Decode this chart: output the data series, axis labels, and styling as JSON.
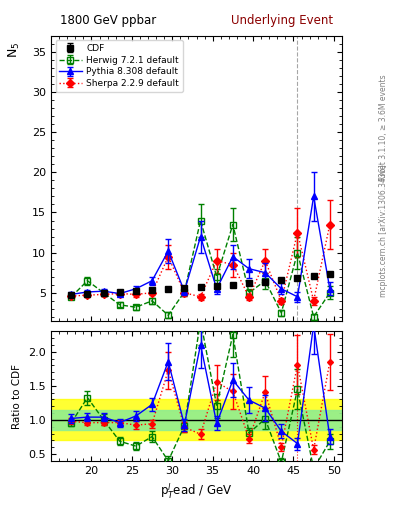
{
  "title_left": "1800 GeV ppbar",
  "title_right": "Underlying Event",
  "ylabel_main": "N$_5$",
  "ylabel_ratio": "Ratio to CDF",
  "xlabel": "p$_T^l$ead / GeV",
  "xlim": [
    15,
    51
  ],
  "ylim_main": [
    1.5,
    37
  ],
  "ylim_ratio": [
    0.4,
    2.3
  ],
  "vline_x": 45.5,
  "right_label_top": "Rivet 3.1.10, ≥ 3.6M events",
  "right_label_bot": "mcplots.cern.ch [arXiv:1306.3436]",
  "cdf_x": [
    17.5,
    19.5,
    21.5,
    23.5,
    25.5,
    27.5,
    29.5,
    31.5,
    33.5,
    35.5,
    37.5,
    39.5,
    41.5,
    43.5,
    45.5,
    47.5,
    49.5
  ],
  "cdf_y": [
    4.7,
    4.9,
    5.0,
    5.1,
    5.2,
    5.3,
    5.5,
    5.6,
    5.7,
    5.8,
    6.0,
    6.2,
    6.4,
    6.6,
    6.9,
    7.1,
    7.3
  ],
  "cdf_ye": [
    0.15,
    0.15,
    0.15,
    0.15,
    0.15,
    0.15,
    0.15,
    0.15,
    0.15,
    0.15,
    0.15,
    0.15,
    0.15,
    0.15,
    0.15,
    0.15,
    0.15
  ],
  "herwig_x": [
    17.5,
    19.5,
    21.5,
    23.5,
    25.5,
    27.5,
    29.5,
    31.5,
    33.5,
    35.5,
    37.5,
    39.5,
    41.5,
    43.5,
    45.5,
    47.5,
    49.5
  ],
  "herwig_y": [
    4.5,
    6.5,
    5.0,
    3.5,
    3.2,
    4.0,
    2.2,
    5.1,
    14.0,
    7.0,
    13.5,
    5.0,
    6.5,
    2.5,
    10.0,
    2.0,
    5.0
  ],
  "herwig_ye": [
    0.2,
    0.5,
    0.4,
    0.3,
    0.3,
    0.4,
    0.4,
    0.5,
    2.0,
    1.0,
    2.0,
    0.5,
    1.0,
    0.4,
    2.0,
    0.4,
    0.8
  ],
  "pythia_x": [
    17.5,
    19.5,
    21.5,
    23.5,
    25.5,
    27.5,
    29.5,
    31.5,
    33.5,
    35.5,
    37.5,
    39.5,
    41.5,
    43.5,
    45.5,
    47.5,
    49.5
  ],
  "pythia_y": [
    4.8,
    5.1,
    5.2,
    4.9,
    5.5,
    6.5,
    10.2,
    5.2,
    12.0,
    5.5,
    9.5,
    8.0,
    7.5,
    5.5,
    4.5,
    17.0,
    5.5
  ],
  "pythia_ye": [
    0.3,
    0.3,
    0.3,
    0.3,
    0.4,
    0.5,
    1.5,
    0.5,
    2.0,
    0.6,
    1.5,
    1.2,
    1.2,
    0.7,
    0.6,
    3.0,
    0.8
  ],
  "sherpa_x": [
    17.5,
    19.5,
    21.5,
    23.5,
    25.5,
    27.5,
    29.5,
    31.5,
    33.5,
    35.5,
    37.5,
    39.5,
    41.5,
    43.5,
    45.5,
    47.5,
    49.5
  ],
  "sherpa_y": [
    4.6,
    4.7,
    4.8,
    4.9,
    4.8,
    5.0,
    9.5,
    5.0,
    4.5,
    9.0,
    8.5,
    4.5,
    9.0,
    4.0,
    12.5,
    4.0,
    13.5
  ],
  "sherpa_ye": [
    0.2,
    0.2,
    0.2,
    0.2,
    0.3,
    0.3,
    1.5,
    0.4,
    0.4,
    1.5,
    1.5,
    0.4,
    1.5,
    0.4,
    3.0,
    0.5,
    3.0
  ],
  "cdf_color": "#000000",
  "herwig_color": "#008000",
  "pythia_color": "#0000ff",
  "sherpa_color": "#ff0000",
  "band_green_lo": 0.85,
  "band_green_hi": 1.15,
  "band_yellow_lo": 0.7,
  "band_yellow_hi": 1.3,
  "ratio_yticks": [
    0.5,
    1.0,
    1.5,
    2.0
  ]
}
